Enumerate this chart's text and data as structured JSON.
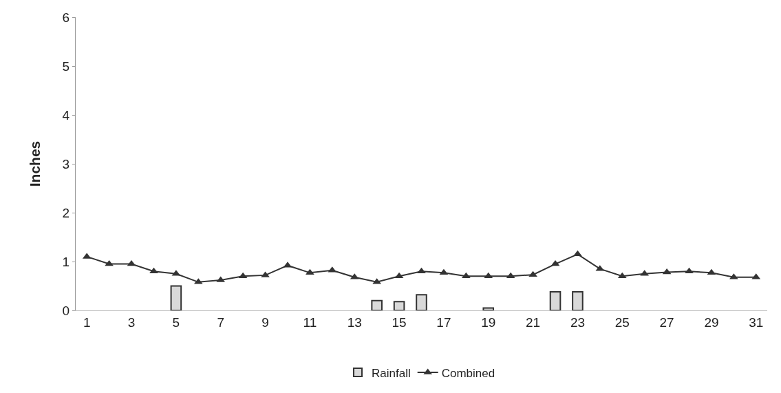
{
  "chart_data": {
    "type": "bar",
    "ylabel": "Inches",
    "x": [
      1,
      2,
      3,
      4,
      5,
      6,
      7,
      8,
      9,
      10,
      11,
      12,
      13,
      14,
      15,
      16,
      17,
      18,
      19,
      20,
      21,
      22,
      23,
      24,
      25,
      26,
      27,
      28,
      29,
      30,
      31
    ],
    "xlim": [
      0.5,
      31.5
    ],
    "xticks": [
      1,
      3,
      5,
      7,
      9,
      11,
      13,
      15,
      17,
      19,
      21,
      23,
      25,
      27,
      29,
      31
    ],
    "ylim": [
      0,
      6
    ],
    "yticks": [
      0,
      1,
      2,
      3,
      4,
      5,
      6
    ],
    "series": [
      {
        "name": "Rainfall",
        "color": "#d9d9d9",
        "values": [
          null,
          null,
          null,
          null,
          0.5,
          null,
          null,
          null,
          null,
          null,
          null,
          null,
          null,
          0.2,
          0.18,
          0.32,
          null,
          null,
          0.05,
          null,
          null,
          0.38,
          0.38,
          null,
          null,
          null,
          null,
          null,
          null,
          null,
          null
        ]
      },
      {
        "name": "Combined",
        "type": "line",
        "color": "#333333",
        "marker": "triangle",
        "values": [
          1.1,
          0.95,
          0.95,
          0.8,
          0.75,
          0.58,
          0.62,
          0.7,
          0.72,
          0.92,
          0.77,
          0.82,
          0.68,
          0.58,
          0.7,
          0.8,
          0.77,
          0.7,
          0.7,
          0.7,
          0.73,
          0.95,
          1.15,
          0.85,
          0.7,
          0.75,
          0.78,
          0.8,
          0.77,
          0.68,
          0.68
        ]
      }
    ],
    "grid": false,
    "legend": "bottom"
  }
}
